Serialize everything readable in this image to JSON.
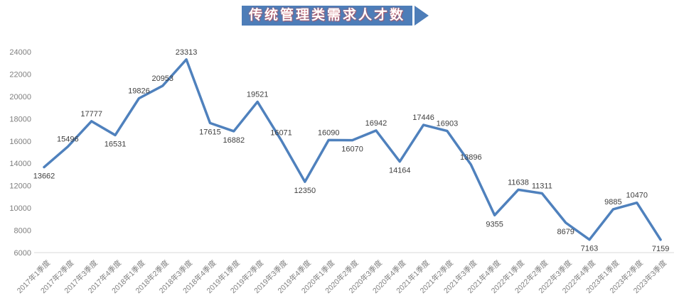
{
  "title": {
    "text": "传统管理类需求人才数"
  },
  "colors": {
    "line": "#4f81bd",
    "banner": "#4d7db8",
    "title_text": "#ffffff",
    "title_fringe": "#d64d4d",
    "data_label": "#404040",
    "axis_label": "#7f7f7f",
    "axis_line": "#d9d9d9",
    "background": "#ffffff"
  },
  "chart_data": {
    "type": "line",
    "title": "传统管理类需求人才数",
    "xlabel": "",
    "ylabel": "",
    "ylim": [
      6000,
      24000
    ],
    "ytick_step": 2000,
    "yticks": [
      6000,
      8000,
      10000,
      12000,
      14000,
      16000,
      18000,
      20000,
      22000,
      24000
    ],
    "grid": false,
    "legend_position": "none",
    "categories": [
      "2017年1季度",
      "2017年2季度",
      "2017年3季度",
      "2017年4季度",
      "2018年1季度",
      "2018年2季度",
      "2018年3季度",
      "2018年4季度",
      "2019年1季度",
      "2019年2季度",
      "2019年3季度",
      "2019年4季度",
      "2020年1季度",
      "2020年2季度",
      "2020年3季度",
      "2020年4季度",
      "2021年1季度",
      "2021年2季度",
      "2021年3季度",
      "2021年4季度",
      "2022年1季度",
      "2022年2季度",
      "2022年3季度",
      "2022年4季度",
      "2023年1季度",
      "2023年2季度",
      "2023年3季度"
    ],
    "series": [
      {
        "name": "传统管理类需求人才数",
        "values": [
          13662,
          15496,
          17777,
          16531,
          19826,
          20953,
          23313,
          17615,
          16882,
          19521,
          16071,
          12350,
          16090,
          16070,
          16942,
          14164,
          17446,
          16903,
          13896,
          9355,
          11638,
          11311,
          8679,
          7163,
          9885,
          10470,
          7159
        ],
        "label_sides": [
          "below",
          "above",
          "above",
          "below",
          "above",
          "above",
          "above",
          "below",
          "below",
          "above",
          "above",
          "below",
          "above",
          "below",
          "above",
          "below",
          "above",
          "above",
          "above",
          "below",
          "above",
          "above",
          "below",
          "below",
          "above",
          "above",
          "below"
        ]
      }
    ]
  }
}
